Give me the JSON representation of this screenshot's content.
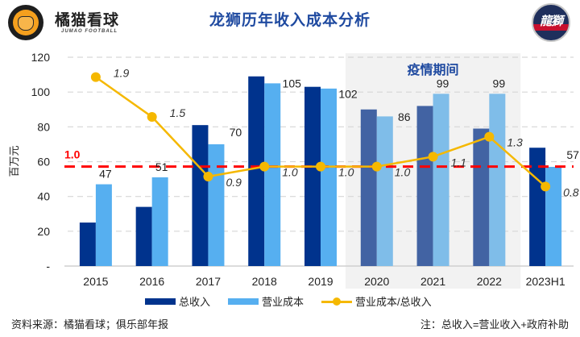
{
  "header": {
    "brand_cn": "橘猫看球",
    "brand_en": "JUMAO FOOTBALL",
    "title": "龙狮历年收入成本分析",
    "team_logo_text": "龍獅"
  },
  "colors": {
    "revenue": "#00338d",
    "revenue_covid": "#4263a3",
    "cost": "#56aff0",
    "cost_covid": "#7fbde9",
    "ratio_line": "#f5b800",
    "reference_line": "#ff0000",
    "covid_band": "#f2f2f2",
    "covid_label": "#1f4aa0"
  },
  "chart_data": {
    "type": "bar",
    "title": "龙狮历年收入成本分析",
    "xlabel": "",
    "ylabel": "百万元",
    "ylim": [
      0,
      120
    ],
    "yticks": [
      0,
      20,
      40,
      60,
      80,
      100,
      120
    ],
    "ytick_labels": [
      "-",
      "20",
      "40",
      "60",
      "80",
      "100",
      "120"
    ],
    "grid": true,
    "categories": [
      "2015",
      "2016",
      "2017",
      "2018",
      "2019",
      "2020",
      "2021",
      "2022",
      "2023H1"
    ],
    "series": [
      {
        "name": "总收入",
        "type": "bar",
        "values": [
          25,
          34,
          81,
          109,
          103,
          90,
          92,
          79,
          68
        ]
      },
      {
        "name": "营业成本",
        "type": "bar",
        "values": [
          47,
          51,
          70,
          105,
          102,
          86,
          99,
          99,
          57
        ],
        "labels": [
          "47",
          "51",
          "70",
          "105",
          "102",
          "86",
          "99",
          "99",
          "57"
        ]
      },
      {
        "name": "营业成本/总收入",
        "type": "line",
        "axis": "secondary",
        "values": [
          1.9,
          1.5,
          0.9,
          1.0,
          1.0,
          1.0,
          1.1,
          1.3,
          0.8
        ],
        "labels": [
          "1.9",
          "1.5",
          "0.9",
          "1.0",
          "1.0",
          "1.0",
          "1.1",
          "1.3",
          "0.8"
        ]
      }
    ],
    "secondary_ylim": [
      0,
      2.1
    ],
    "reference_line": {
      "value": 1.0,
      "axis": "secondary",
      "label": "1.0"
    },
    "highlight_band": {
      "from": "2020",
      "to": "2022",
      "label": "疫情期间"
    },
    "legend": {
      "placement": "bottom",
      "entries": [
        "总收入",
        "营业成本",
        "营业成本/总收入"
      ]
    }
  },
  "footer": {
    "source": "资料来源：橘猫看球；俱乐部年报",
    "note": "注：总收入=营业收入+政府补助"
  }
}
